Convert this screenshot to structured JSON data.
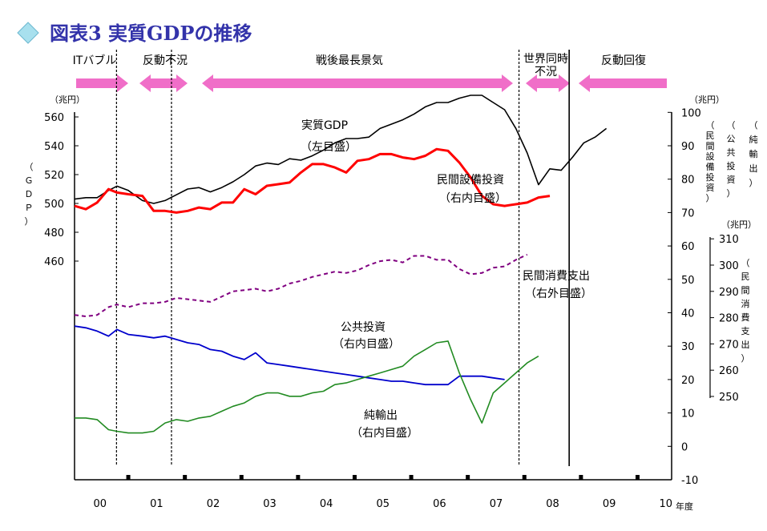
{
  "title": "図表3 実質GDPの推移",
  "colors": {
    "gdp": "#000000",
    "capex": "#ff0000",
    "consumption": "#800080",
    "public": "#0000cc",
    "netexports": "#228b22",
    "arrow": "#f06ec8",
    "title": "#3333aa"
  },
  "phases": [
    {
      "label": "ITバブル",
      "from": 0.0,
      "to": 0.6
    },
    {
      "label": "反動不況",
      "from": 0.6,
      "to": 1.6
    },
    {
      "label": "戦後最長景気",
      "from": 1.6,
      "to": 7.6
    },
    {
      "label": "世界同時",
      "label2": "不況",
      "from": 7.6,
      "to": 8.6
    },
    {
      "label": "反動回復",
      "from": 8.6,
      "to": 10.5
    }
  ],
  "annotations": {
    "gdp": {
      "line1": "実質GDP",
      "line2": "（左目盛）"
    },
    "capex": {
      "line1": "民間設備投資",
      "line2": "（右内目盛）"
    },
    "consumption": {
      "line1": "民間消費支出",
      "line2": "（右外目盛）"
    },
    "public": {
      "line1": "公共投資",
      "line2": "（右内目盛）"
    },
    "netexports": {
      "line1": "純輸出",
      "line2": "（右内目盛）"
    }
  },
  "axes": {
    "left": {
      "unit": "（兆円）",
      "label": "（ＧＤＰ）",
      "ticks": [
        460,
        480,
        500,
        520,
        540,
        560
      ]
    },
    "right_inner": {
      "unit": "（兆円）",
      "ticks": [
        -10,
        0,
        10,
        20,
        30,
        40,
        50,
        60,
        70,
        80,
        90,
        100
      ]
    },
    "right_outer": {
      "unit": "（兆円）",
      "ticks": [
        250,
        260,
        270,
        280,
        290,
        300,
        310
      ]
    },
    "right_labels": [
      "（純輸出）",
      "（公共投資）",
      "（民間設備投資）"
    ],
    "outer_label": "（民間消費支出）",
    "x_unit": "年度",
    "x_labels": [
      "00",
      "01",
      "02",
      "03",
      "04",
      "05",
      "06",
      "07",
      "08",
      "09",
      "10"
    ]
  },
  "chart_data": {
    "type": "line",
    "x_labels": [
      "00",
      "01",
      "02",
      "03",
      "04",
      "05",
      "06",
      "07",
      "08",
      "09",
      "10"
    ],
    "recession_lines_at": [
      0.6,
      1.6,
      7.6,
      8.6
    ],
    "series": [
      {
        "name": "実質GDP",
        "axis": "left",
        "points": [
          [
            0,
            503
          ],
          [
            0.2,
            504
          ],
          [
            0.4,
            504
          ],
          [
            0.6,
            509
          ],
          [
            0.75,
            512
          ],
          [
            0.95,
            509
          ],
          [
            1.2,
            502
          ],
          [
            1.4,
            500
          ],
          [
            1.6,
            502
          ],
          [
            1.8,
            506
          ],
          [
            2.0,
            510
          ],
          [
            2.2,
            511
          ],
          [
            2.4,
            508
          ],
          [
            2.6,
            511
          ],
          [
            2.8,
            515
          ],
          [
            3.0,
            520
          ],
          [
            3.2,
            526
          ],
          [
            3.4,
            528
          ],
          [
            3.6,
            527
          ],
          [
            3.8,
            531
          ],
          [
            4.0,
            530
          ],
          [
            4.2,
            533
          ],
          [
            4.4,
            537
          ],
          [
            4.6,
            542
          ],
          [
            4.8,
            545
          ],
          [
            5.0,
            545
          ],
          [
            5.2,
            546
          ],
          [
            5.4,
            552
          ],
          [
            5.6,
            555
          ],
          [
            5.8,
            558
          ],
          [
            6.0,
            562
          ],
          [
            6.2,
            567
          ],
          [
            6.4,
            570
          ],
          [
            6.6,
            570
          ],
          [
            6.8,
            573
          ],
          [
            7.0,
            575
          ],
          [
            7.2,
            575
          ],
          [
            7.4,
            570
          ],
          [
            7.6,
            565
          ],
          [
            7.8,
            552
          ],
          [
            8.0,
            535
          ],
          [
            8.2,
            513
          ],
          [
            8.4,
            524
          ],
          [
            8.6,
            523
          ],
          [
            8.8,
            532
          ],
          [
            9.0,
            542
          ],
          [
            9.2,
            546
          ],
          [
            9.4,
            552
          ]
        ]
      },
      {
        "name": "民間設備投資",
        "axis": "right_inner",
        "points": [
          [
            0,
            72
          ],
          [
            0.2,
            71
          ],
          [
            0.4,
            73
          ],
          [
            0.6,
            77
          ],
          [
            0.75,
            76
          ],
          [
            0.95,
            75.5
          ],
          [
            1.2,
            75
          ],
          [
            1.4,
            70.5
          ],
          [
            1.6,
            70.5
          ],
          [
            1.8,
            70
          ],
          [
            2.0,
            70.5
          ],
          [
            2.2,
            71.5
          ],
          [
            2.4,
            71
          ],
          [
            2.6,
            73
          ],
          [
            2.8,
            73
          ],
          [
            3.0,
            77
          ],
          [
            3.2,
            75.5
          ],
          [
            3.4,
            78
          ],
          [
            3.6,
            78.5
          ],
          [
            3.8,
            79
          ],
          [
            4.0,
            82
          ],
          [
            4.2,
            84.5
          ],
          [
            4.4,
            84.5
          ],
          [
            4.6,
            83.5
          ],
          [
            4.8,
            82
          ],
          [
            5.0,
            85.5
          ],
          [
            5.2,
            86
          ],
          [
            5.4,
            87.5
          ],
          [
            5.6,
            87.5
          ],
          [
            5.8,
            86.5
          ],
          [
            6.0,
            86
          ],
          [
            6.2,
            87
          ],
          [
            6.4,
            89
          ],
          [
            6.6,
            88.5
          ],
          [
            6.8,
            85
          ],
          [
            7.0,
            80.5
          ],
          [
            7.2,
            75
          ],
          [
            7.4,
            72.5
          ],
          [
            7.6,
            72
          ],
          [
            7.8,
            72.5
          ],
          [
            8.0,
            73
          ],
          [
            8.2,
            74.5
          ],
          [
            8.4,
            75
          ]
        ]
      },
      {
        "name": "民間消費支出",
        "axis": "right_outer",
        "points": [
          [
            0,
            281
          ],
          [
            0.2,
            280.5
          ],
          [
            0.4,
            281
          ],
          [
            0.6,
            284
          ],
          [
            0.75,
            285
          ],
          [
            0.95,
            284
          ],
          [
            1.2,
            285.5
          ],
          [
            1.4,
            285.5
          ],
          [
            1.6,
            286
          ],
          [
            1.8,
            287.5
          ],
          [
            2.0,
            287
          ],
          [
            2.2,
            286.5
          ],
          [
            2.4,
            286
          ],
          [
            2.6,
            288
          ],
          [
            2.8,
            290
          ],
          [
            3.0,
            290.5
          ],
          [
            3.2,
            291
          ],
          [
            3.4,
            290
          ],
          [
            3.6,
            291
          ],
          [
            3.8,
            293
          ],
          [
            4.0,
            294
          ],
          [
            4.2,
            295.5
          ],
          [
            4.4,
            296.5
          ],
          [
            4.6,
            297.5
          ],
          [
            4.8,
            297
          ],
          [
            5.0,
            298
          ],
          [
            5.2,
            300
          ],
          [
            5.4,
            301.5
          ],
          [
            5.6,
            302
          ],
          [
            5.8,
            301
          ],
          [
            6.0,
            303.5
          ],
          [
            6.2,
            303.5
          ],
          [
            6.4,
            302
          ],
          [
            6.6,
            302
          ],
          [
            6.8,
            298.5
          ],
          [
            7.0,
            296.5
          ],
          [
            7.2,
            297
          ],
          [
            7.4,
            299
          ],
          [
            7.6,
            299.5
          ],
          [
            7.8,
            302
          ],
          [
            8.0,
            304
          ]
        ]
      },
      {
        "name": "公共投資",
        "axis": "right_inner",
        "points": [
          [
            0,
            36
          ],
          [
            0.2,
            35.5
          ],
          [
            0.4,
            34.5
          ],
          [
            0.6,
            33
          ],
          [
            0.75,
            35
          ],
          [
            0.95,
            33.5
          ],
          [
            1.2,
            33
          ],
          [
            1.4,
            32.5
          ],
          [
            1.6,
            33
          ],
          [
            1.8,
            32
          ],
          [
            2.0,
            31
          ],
          [
            2.2,
            30.5
          ],
          [
            2.4,
            29
          ],
          [
            2.6,
            28.5
          ],
          [
            2.8,
            27
          ],
          [
            3.0,
            26
          ],
          [
            3.2,
            28
          ],
          [
            3.4,
            25
          ],
          [
            3.6,
            24.5
          ],
          [
            3.8,
            24
          ],
          [
            4.0,
            23.5
          ],
          [
            4.2,
            23
          ],
          [
            4.4,
            22.5
          ],
          [
            4.6,
            22
          ],
          [
            4.8,
            21.5
          ],
          [
            5.0,
            21
          ],
          [
            5.2,
            20.5
          ],
          [
            5.4,
            20
          ],
          [
            5.6,
            19.5
          ],
          [
            5.8,
            19.5
          ],
          [
            6.0,
            19
          ],
          [
            6.2,
            18.5
          ],
          [
            6.4,
            18.5
          ],
          [
            6.6,
            18.5
          ],
          [
            6.8,
            21
          ],
          [
            7.0,
            21
          ],
          [
            7.2,
            21
          ],
          [
            7.4,
            20.5
          ],
          [
            7.6,
            20
          ]
        ]
      },
      {
        "name": "純輸出",
        "axis": "right_inner",
        "points": [
          [
            0,
            8.5
          ],
          [
            0.2,
            8.5
          ],
          [
            0.4,
            8
          ],
          [
            0.6,
            5
          ],
          [
            0.75,
            4.5
          ],
          [
            0.95,
            4
          ],
          [
            1.2,
            4
          ],
          [
            1.4,
            4.5
          ],
          [
            1.6,
            7
          ],
          [
            1.8,
            8
          ],
          [
            2.0,
            7.5
          ],
          [
            2.2,
            8.5
          ],
          [
            2.4,
            9
          ],
          [
            2.6,
            10.5
          ],
          [
            2.8,
            12
          ],
          [
            3.0,
            13
          ],
          [
            3.2,
            15
          ],
          [
            3.4,
            16
          ],
          [
            3.6,
            16
          ],
          [
            3.8,
            15
          ],
          [
            4.0,
            15
          ],
          [
            4.2,
            16
          ],
          [
            4.4,
            16.5
          ],
          [
            4.6,
            18.5
          ],
          [
            4.8,
            19
          ],
          [
            5.0,
            20
          ],
          [
            5.2,
            21
          ],
          [
            5.4,
            22
          ],
          [
            5.6,
            23
          ],
          [
            5.8,
            24
          ],
          [
            6.0,
            27
          ],
          [
            6.2,
            29
          ],
          [
            6.4,
            31
          ],
          [
            6.6,
            31.5
          ],
          [
            6.8,
            22
          ],
          [
            7.0,
            14
          ],
          [
            7.2,
            7
          ],
          [
            7.4,
            16
          ],
          [
            7.6,
            19
          ],
          [
            7.8,
            22
          ],
          [
            8.0,
            25
          ],
          [
            8.2,
            27
          ]
        ]
      }
    ]
  }
}
